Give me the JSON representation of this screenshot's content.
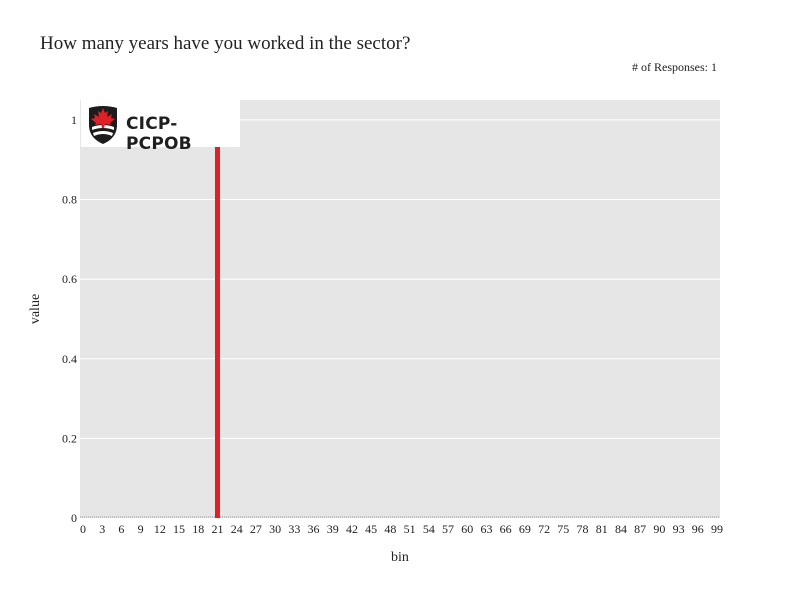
{
  "title": "How many years have you worked in the sector?",
  "responses": {
    "label": "# of Responses:",
    "count": "1"
  },
  "logo": {
    "text": "CICP-PCPOB"
  },
  "colors": {
    "plot_bg": "#e6e6e6",
    "grid": "#ffffff",
    "bar": "#e02026",
    "logo_maple": "#e02026",
    "logo_shield": "#1c1c1c"
  },
  "chart_data": {
    "type": "bar",
    "title": "How many years have you worked in the sector?",
    "xlabel": "bin",
    "ylabel": "value",
    "ylim": [
      0,
      1.05
    ],
    "yticks": [
      0,
      0.2,
      0.4,
      0.6,
      0.8,
      1
    ],
    "ytick_labels": [
      "0",
      "0.2",
      "0.4",
      "0.6",
      "0.8",
      "1"
    ],
    "xlim": [
      0,
      99
    ],
    "xtick_step": 3,
    "series": [
      {
        "name": "responses",
        "x": [
          21
        ],
        "values": [
          1
        ]
      }
    ],
    "grid": true,
    "legend": "none"
  }
}
